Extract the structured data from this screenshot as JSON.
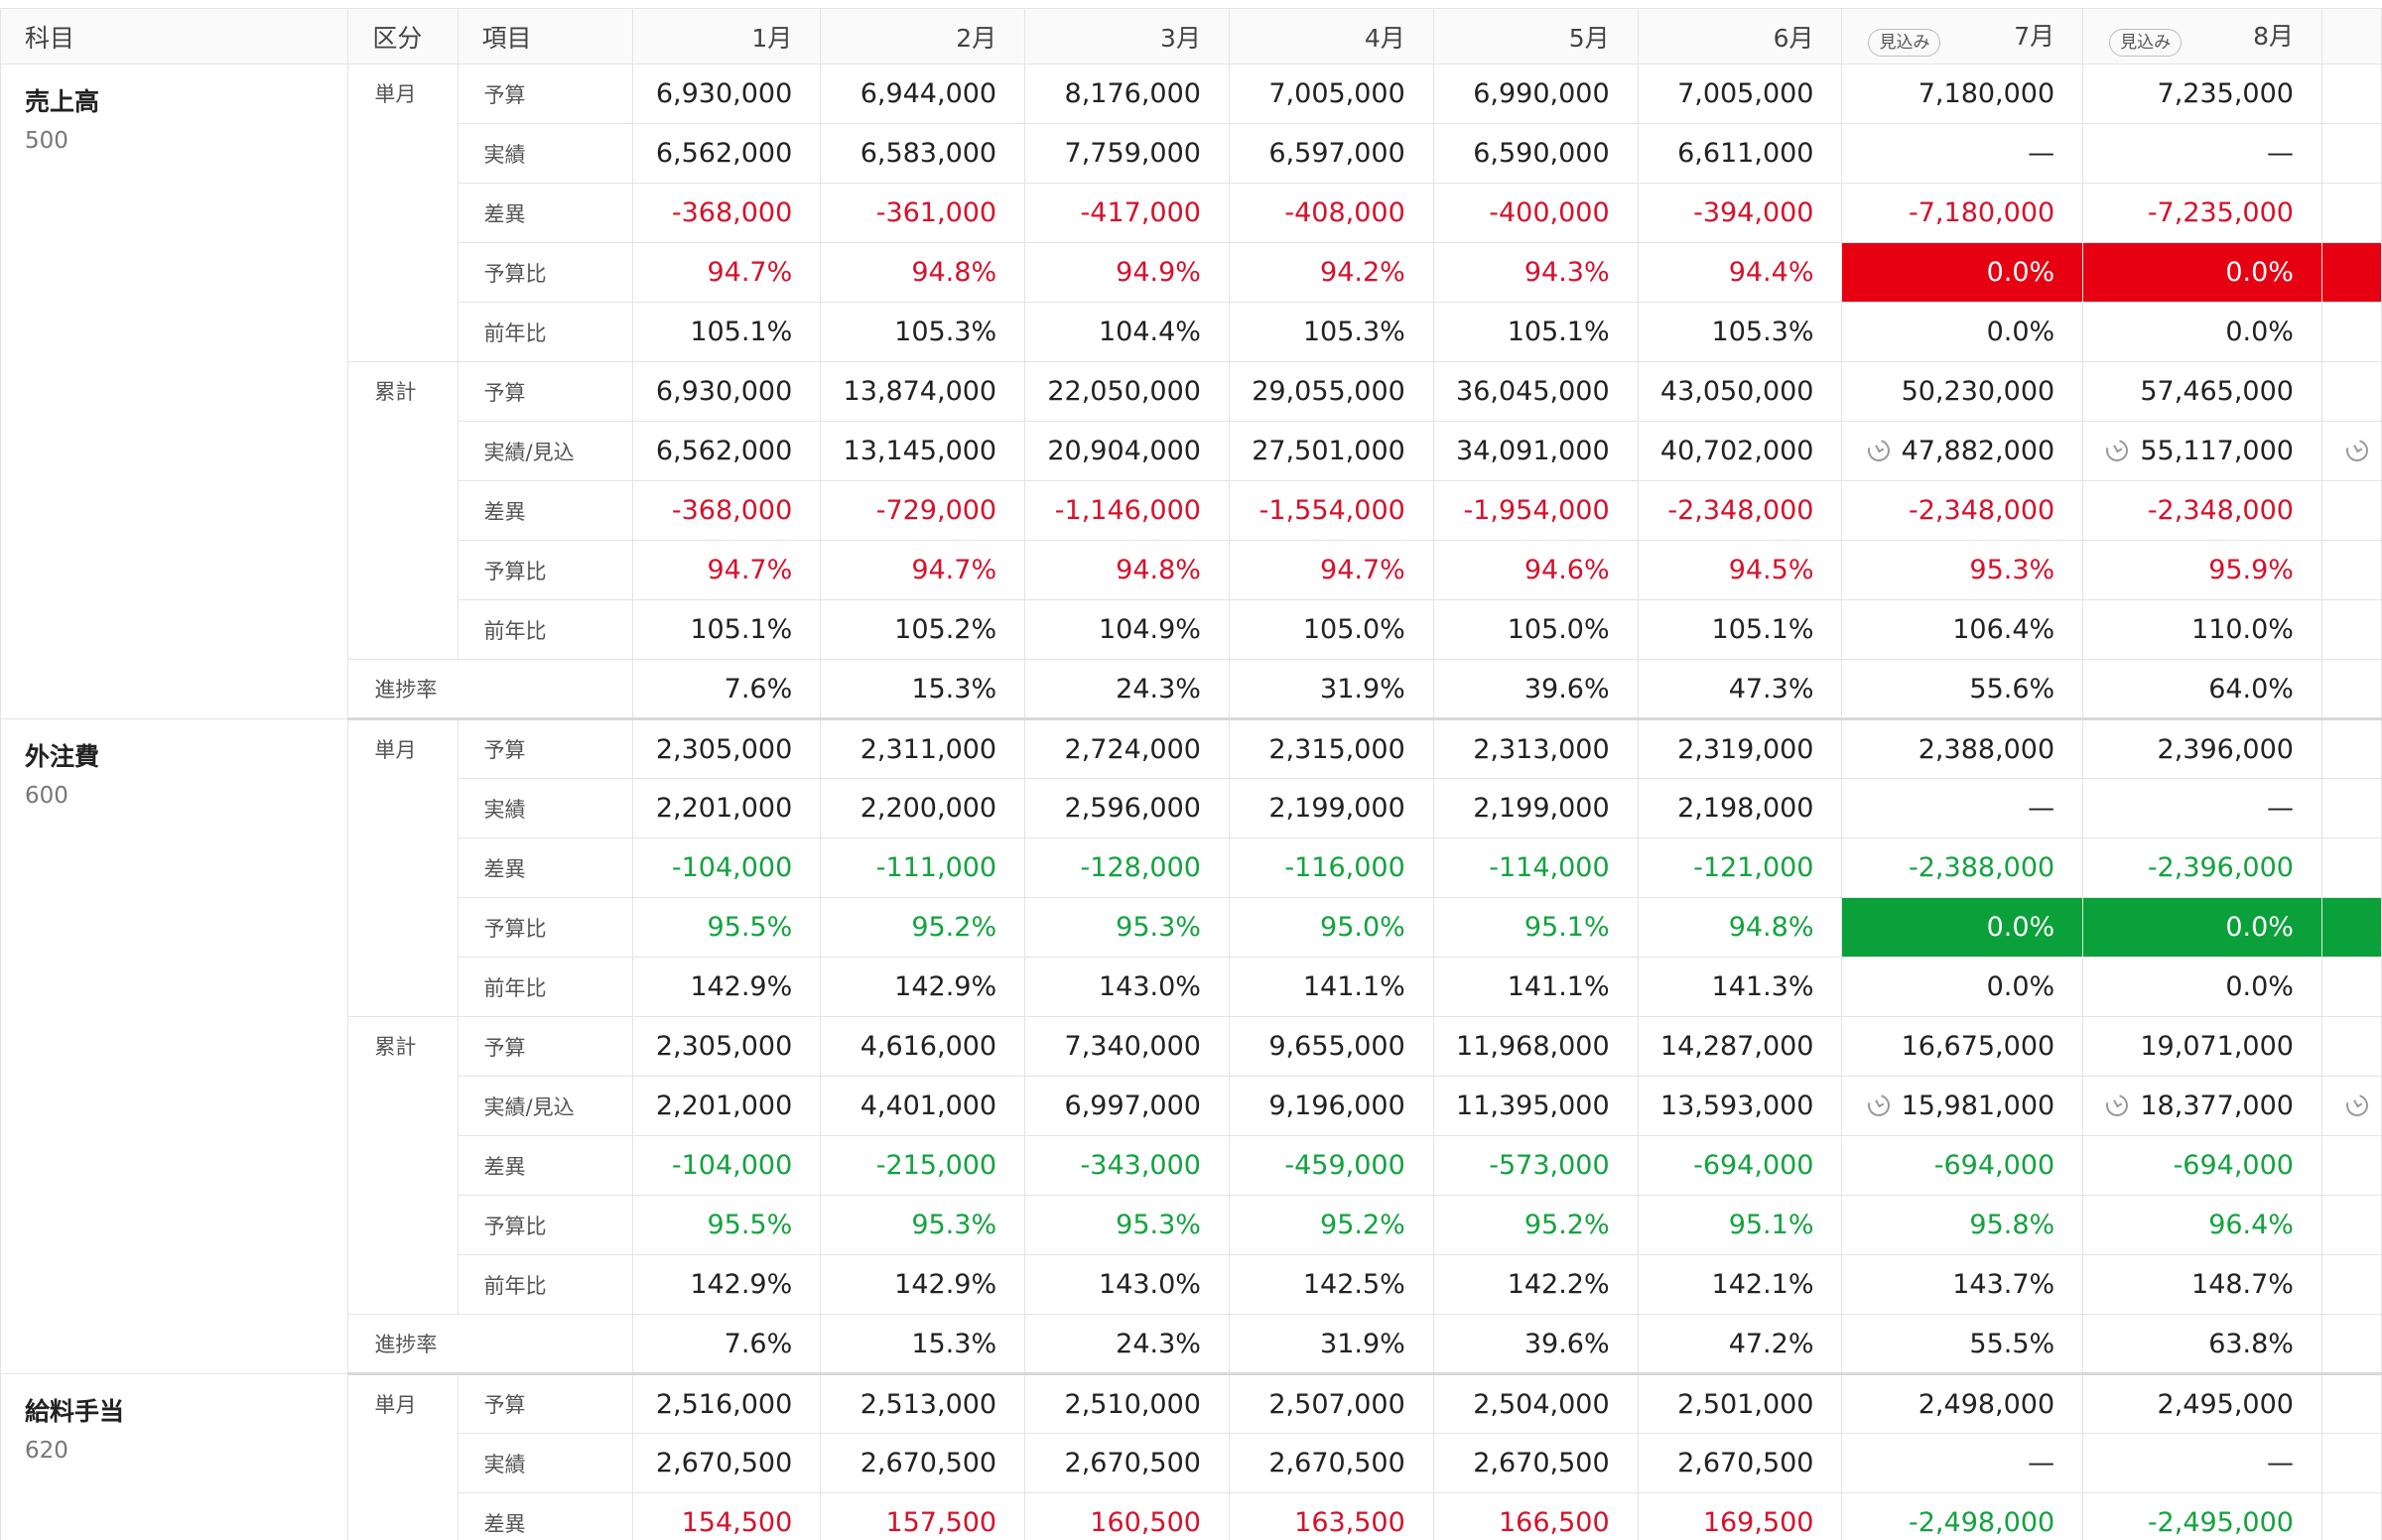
{
  "header": {
    "subject": "科目",
    "category": "区分",
    "item": "項目",
    "months": [
      {
        "label": "1月",
        "badge": null
      },
      {
        "label": "2月",
        "badge": null
      },
      {
        "label": "3月",
        "badge": null
      },
      {
        "label": "4月",
        "badge": null
      },
      {
        "label": "5月",
        "badge": null
      },
      {
        "label": "6月",
        "badge": null
      },
      {
        "label": "7月",
        "badge": "見込み"
      },
      {
        "label": "8月",
        "badge": "見込み"
      }
    ]
  },
  "colors": {
    "negative_text": "#d6112a",
    "positive_text": "#12a33e",
    "alert_red_fill": "#e60012",
    "alert_green_fill": "#0ba13a"
  },
  "blocks": [
    {
      "name": "売上高",
      "code": "500",
      "groups": [
        {
          "label": "単月",
          "rows": [
            {
              "item": "予算",
              "tone": "",
              "values": [
                "6,930,000",
                "6,944,000",
                "8,176,000",
                "7,005,000",
                "6,990,000",
                "7,005,000",
                "7,180,000",
                "7,235,000"
              ]
            },
            {
              "item": "実績",
              "tone": "",
              "values": [
                "6,562,000",
                "6,583,000",
                "7,759,000",
                "6,597,000",
                "6,590,000",
                "6,611,000",
                "—",
                "—"
              ]
            },
            {
              "item": "差異",
              "tone": "neg",
              "values": [
                "-368,000",
                "-361,000",
                "-417,000",
                "-408,000",
                "-400,000",
                "-394,000",
                "-7,180,000",
                "-7,235,000"
              ]
            },
            {
              "item": "予算比",
              "tone": "neg",
              "fill": "red",
              "values": [
                "94.7%",
                "94.8%",
                "94.9%",
                "94.2%",
                "94.3%",
                "94.4%",
                "0.0%",
                "0.0%"
              ]
            },
            {
              "item": "前年比",
              "tone": "",
              "values": [
                "105.1%",
                "105.3%",
                "104.4%",
                "105.3%",
                "105.1%",
                "105.3%",
                "0.0%",
                "0.0%"
              ]
            }
          ]
        },
        {
          "label": "累計",
          "rows": [
            {
              "item": "予算",
              "tone": "",
              "values": [
                "6,930,000",
                "13,874,000",
                "22,050,000",
                "29,055,000",
                "36,045,000",
                "43,050,000",
                "50,230,000",
                "57,465,000"
              ]
            },
            {
              "item": "実績/見込",
              "tone": "",
              "clock": true,
              "values": [
                "6,562,000",
                "13,145,000",
                "20,904,000",
                "27,501,000",
                "34,091,000",
                "40,702,000",
                "47,882,000",
                "55,117,000"
              ]
            },
            {
              "item": "差異",
              "tone": "neg",
              "values": [
                "-368,000",
                "-729,000",
                "-1,146,000",
                "-1,554,000",
                "-1,954,000",
                "-2,348,000",
                "-2,348,000",
                "-2,348,000"
              ]
            },
            {
              "item": "予算比",
              "tone": "neg",
              "values": [
                "94.7%",
                "94.7%",
                "94.8%",
                "94.7%",
                "94.6%",
                "94.5%",
                "95.3%",
                "95.9%"
              ]
            },
            {
              "item": "前年比",
              "tone": "",
              "values": [
                "105.1%",
                "105.2%",
                "104.9%",
                "105.0%",
                "105.0%",
                "105.1%",
                "106.4%",
                "110.0%"
              ]
            }
          ]
        }
      ],
      "progress": {
        "label": "進捗率",
        "values": [
          "7.6%",
          "15.3%",
          "24.3%",
          "31.9%",
          "39.6%",
          "47.3%",
          "55.6%",
          "64.0%"
        ]
      }
    },
    {
      "name": "外注費",
      "code": "600",
      "groups": [
        {
          "label": "単月",
          "rows": [
            {
              "item": "予算",
              "tone": "",
              "values": [
                "2,305,000",
                "2,311,000",
                "2,724,000",
                "2,315,000",
                "2,313,000",
                "2,319,000",
                "2,388,000",
                "2,396,000"
              ]
            },
            {
              "item": "実績",
              "tone": "",
              "values": [
                "2,201,000",
                "2,200,000",
                "2,596,000",
                "2,199,000",
                "2,199,000",
                "2,198,000",
                "—",
                "—"
              ]
            },
            {
              "item": "差異",
              "tone": "pos",
              "values": [
                "-104,000",
                "-111,000",
                "-128,000",
                "-116,000",
                "-114,000",
                "-121,000",
                "-2,388,000",
                "-2,396,000"
              ]
            },
            {
              "item": "予算比",
              "tone": "pos",
              "fill": "green",
              "values": [
                "95.5%",
                "95.2%",
                "95.3%",
                "95.0%",
                "95.1%",
                "94.8%",
                "0.0%",
                "0.0%"
              ]
            },
            {
              "item": "前年比",
              "tone": "",
              "values": [
                "142.9%",
                "142.9%",
                "143.0%",
                "141.1%",
                "141.1%",
                "141.3%",
                "0.0%",
                "0.0%"
              ]
            }
          ]
        },
        {
          "label": "累計",
          "rows": [
            {
              "item": "予算",
              "tone": "",
              "values": [
                "2,305,000",
                "4,616,000",
                "7,340,000",
                "9,655,000",
                "11,968,000",
                "14,287,000",
                "16,675,000",
                "19,071,000"
              ]
            },
            {
              "item": "実績/見込",
              "tone": "",
              "clock": true,
              "values": [
                "2,201,000",
                "4,401,000",
                "6,997,000",
                "9,196,000",
                "11,395,000",
                "13,593,000",
                "15,981,000",
                "18,377,000"
              ]
            },
            {
              "item": "差異",
              "tone": "pos",
              "values": [
                "-104,000",
                "-215,000",
                "-343,000",
                "-459,000",
                "-573,000",
                "-694,000",
                "-694,000",
                "-694,000"
              ]
            },
            {
              "item": "予算比",
              "tone": "pos",
              "values": [
                "95.5%",
                "95.3%",
                "95.3%",
                "95.2%",
                "95.2%",
                "95.1%",
                "95.8%",
                "96.4%"
              ]
            },
            {
              "item": "前年比",
              "tone": "",
              "values": [
                "142.9%",
                "142.9%",
                "143.0%",
                "142.5%",
                "142.2%",
                "142.1%",
                "143.7%",
                "148.7%"
              ]
            }
          ]
        }
      ],
      "progress": {
        "label": "進捗率",
        "values": [
          "7.6%",
          "15.3%",
          "24.3%",
          "31.9%",
          "39.6%",
          "47.2%",
          "55.5%",
          "63.8%"
        ]
      }
    },
    {
      "name": "給料手当",
      "code": "620",
      "groups": [
        {
          "label": "単月",
          "rows": [
            {
              "item": "予算",
              "tone": "",
              "values": [
                "2,516,000",
                "2,513,000",
                "2,510,000",
                "2,507,000",
                "2,504,000",
                "2,501,000",
                "2,498,000",
                "2,495,000"
              ]
            },
            {
              "item": "実績",
              "tone": "",
              "values": [
                "2,670,500",
                "2,670,500",
                "2,670,500",
                "2,670,500",
                "2,670,500",
                "2,670,500",
                "—",
                "—"
              ]
            },
            {
              "item": "差異",
              "tone": "mixed",
              "values": [
                "154,500",
                "157,500",
                "160,500",
                "163,500",
                "166,500",
                "169,500",
                "-2,498,000",
                "-2,495,000"
              ]
            }
          ]
        }
      ],
      "progress": null
    }
  ]
}
